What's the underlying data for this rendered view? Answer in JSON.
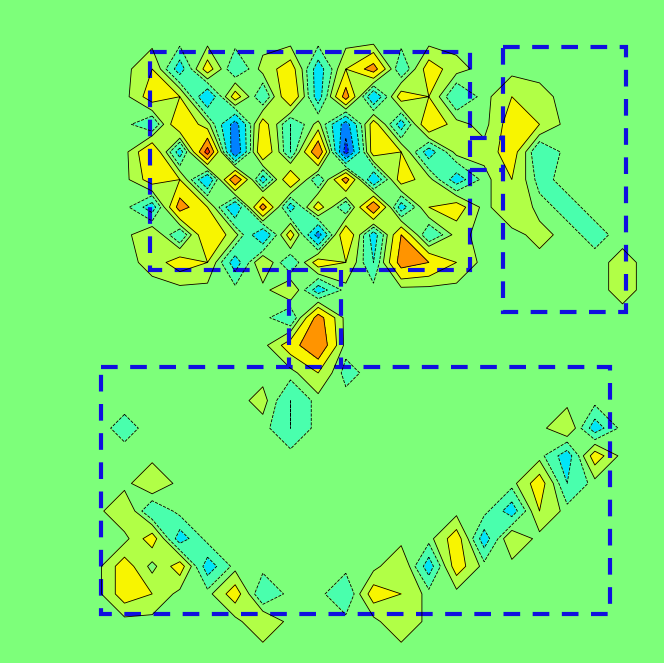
{
  "chart_data": {
    "type": "contour",
    "zlim": [
      -1,
      1
    ],
    "levels": [
      -1,
      -0.8,
      -0.6,
      -0.4,
      -0.2,
      -0.05,
      0.05,
      0.2,
      0.4,
      0.6,
      0.8,
      1
    ],
    "tick_labels": false,
    "cells": [
      [
        0,
        0,
        0,
        0,
        0,
        0,
        0,
        0,
        0,
        0,
        0,
        0,
        0,
        0,
        0,
        0,
        0,
        0,
        0,
        0,
        0,
        0,
        0,
        0
      ],
      [
        0,
        0,
        0,
        0,
        0,
        0,
        0,
        0,
        0,
        0,
        0,
        0,
        0,
        0,
        0,
        0,
        0,
        0,
        0,
        0,
        0,
        0,
        0,
        0
      ],
      [
        0,
        0,
        0,
        0,
        0,
        0.2,
        -0.3,
        0.3,
        -0.2,
        0.1,
        0.3,
        -0.3,
        0.2,
        0.5,
        -0.2,
        0.3,
        0.1,
        0,
        0,
        0,
        0,
        0,
        0,
        0
      ],
      [
        0,
        0,
        0,
        0,
        0,
        0.3,
        0.2,
        -0.4,
        0.3,
        -0.2,
        0.4,
        -0.3,
        0.5,
        -0.4,
        0.3,
        0.2,
        -0.2,
        0,
        0.2,
        0.1,
        0,
        0,
        0,
        0
      ],
      [
        0,
        0,
        0,
        0,
        0,
        -0.2,
        0.4,
        0.1,
        -0.5,
        0.3,
        -0.2,
        0.1,
        -0.5,
        0.3,
        -0.3,
        0.4,
        0.1,
        0,
        0.3,
        0.2,
        0,
        0,
        0,
        0
      ],
      [
        0,
        0,
        0,
        0,
        0,
        0.4,
        -0.3,
        0.7,
        -0.6,
        0.4,
        -0.2,
        0.6,
        -0.7,
        0.3,
        0.2,
        -0.3,
        0.1,
        0.1,
        0.3,
        -0.2,
        0,
        0,
        0,
        0
      ],
      [
        0,
        0,
        0,
        0,
        0,
        0.3,
        0.2,
        -0.4,
        0.6,
        -0.3,
        0.4,
        -0.2,
        0.5,
        -0.4,
        0.3,
        0.1,
        -0.3,
        0,
        0.2,
        -0.1,
        0,
        0,
        0,
        0
      ],
      [
        0,
        0,
        0,
        0,
        0,
        -0.3,
        0.5,
        0.2,
        -0.4,
        0.5,
        -0.3,
        0.3,
        -0.2,
        0.6,
        -0.3,
        0.2,
        0.3,
        0,
        0.2,
        0,
        -0.1,
        0,
        0,
        0
      ],
      [
        0,
        0,
        0,
        0,
        0,
        0.2,
        -0.2,
        0.4,
        0.1,
        -0.4,
        0.3,
        -0.5,
        0.4,
        -0.3,
        0.4,
        -0.2,
        0.1,
        0,
        0,
        0.1,
        0,
        -0.1,
        0,
        0
      ],
      [
        0,
        0,
        0,
        0,
        0,
        0.1,
        0.3,
        0.2,
        -0.3,
        0.2,
        -0.2,
        0.3,
        0.2,
        -0.2,
        0.5,
        0.4,
        0.2,
        0,
        0,
        0,
        0,
        0,
        0.1,
        0
      ],
      [
        0,
        0,
        0,
        0,
        0,
        0,
        0,
        0,
        0,
        0,
        0.2,
        -0.3,
        0,
        0,
        0,
        0,
        0,
        0,
        0,
        0,
        0,
        0,
        0.1,
        0
      ],
      [
        0,
        0,
        0,
        0,
        0,
        0,
        0,
        0,
        0,
        0,
        -0.2,
        0.5,
        0,
        0,
        0,
        0,
        0,
        0,
        0,
        0,
        0,
        0,
        0,
        0
      ],
      [
        0,
        0,
        0,
        0,
        0,
        0,
        0,
        0,
        0,
        0,
        0.3,
        0.6,
        0,
        0,
        0,
        0,
        0,
        0,
        0,
        0,
        0,
        0,
        0,
        0
      ],
      [
        0,
        0,
        0,
        0,
        0,
        0,
        0,
        0,
        0,
        0,
        0,
        0.2,
        -0.1,
        0,
        0,
        0,
        0,
        0,
        0,
        0,
        0,
        0,
        0,
        0
      ],
      [
        0,
        0,
        0,
        0,
        0,
        0,
        0,
        0,
        0,
        0.1,
        -0.2,
        0,
        0,
        0,
        0,
        0,
        0,
        0,
        0,
        0,
        0,
        0,
        0,
        0
      ],
      [
        0,
        0,
        0,
        0,
        -0.1,
        0,
        0,
        0,
        0,
        0,
        -0.2,
        0,
        0,
        0,
        0,
        0,
        0,
        0,
        0,
        0,
        0.2,
        -0.3,
        0,
        0
      ],
      [
        0,
        0,
        0,
        0,
        0,
        0,
        0,
        0,
        0,
        0,
        0,
        0,
        0,
        0,
        0,
        0,
        0,
        0,
        0,
        0,
        -0.3,
        0.3,
        0,
        0
      ],
      [
        0,
        0,
        0,
        0,
        0,
        0.2,
        0,
        0,
        0,
        0,
        0,
        0,
        0,
        0,
        0,
        0,
        0,
        0,
        0,
        0.3,
        -0.2,
        0,
        0,
        0
      ],
      [
        0,
        0,
        0,
        0,
        0.2,
        -0.2,
        0,
        0,
        0,
        0,
        0,
        0,
        0,
        0,
        0,
        0,
        0,
        0,
        -0.3,
        0.2,
        0,
        0,
        0,
        0
      ],
      [
        0,
        0,
        0,
        0,
        0,
        0.3,
        -0.3,
        0,
        0,
        0,
        0,
        0,
        0,
        0,
        0,
        0,
        0.3,
        -0.3,
        0.2,
        0,
        0,
        0,
        0,
        0
      ],
      [
        0,
        0,
        0,
        0,
        0.3,
        0,
        0.3,
        -0.3,
        0,
        0,
        0,
        0,
        0,
        0,
        0.2,
        -0.3,
        0.3,
        0,
        0,
        0,
        0,
        0,
        0,
        0
      ],
      [
        0,
        0,
        0,
        0,
        0.3,
        0.2,
        0,
        0,
        0.3,
        -0.2,
        0,
        0,
        -0.2,
        0.3,
        0.2,
        0,
        0,
        0,
        0,
        0,
        0,
        0,
        0,
        0
      ],
      [
        0,
        0,
        0,
        0,
        0,
        0,
        0,
        0,
        0,
        0.2,
        0,
        0,
        0,
        0,
        0.2,
        0,
        0,
        0,
        0,
        0,
        0,
        0,
        0,
        0
      ],
      [
        0,
        0,
        0,
        0,
        0,
        0,
        0,
        0,
        0,
        0,
        0,
        0,
        0,
        0,
        0,
        0,
        0,
        0,
        0,
        0,
        0,
        0,
        0,
        0
      ]
    ]
  }
}
